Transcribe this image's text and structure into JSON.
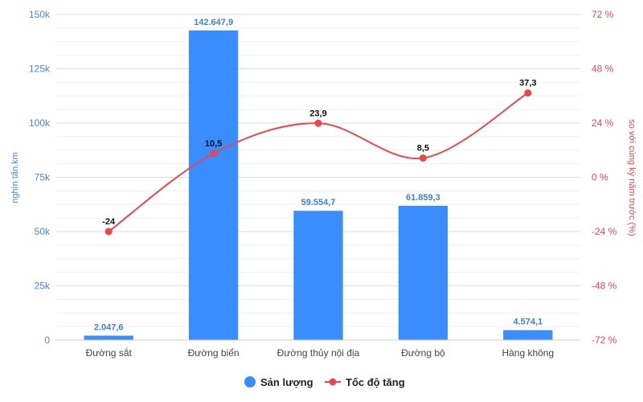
{
  "chart_data": {
    "type": "bar",
    "categories": [
      "Đường sắt",
      "Đường biển",
      "Đường thủy nội địa",
      "Đường bộ",
      "Hàng không"
    ],
    "series": [
      {
        "name": "Sản lượng",
        "type": "bar",
        "axis": "left",
        "color": "#3a8dff",
        "values": [
          2047.6,
          142647.9,
          59554.7,
          61859.3,
          4574.1
        ],
        "labels": [
          "2.047,6",
          "142.647,9",
          "59.554,7",
          "61.859,3",
          "4.574,1"
        ]
      },
      {
        "name": "Tốc độ tăng",
        "type": "line",
        "axis": "right",
        "color": "#e8474c",
        "values": [
          -24,
          10.5,
          23.9,
          8.5,
          37.3
        ],
        "labels": [
          "-24",
          "10,5",
          "23,9",
          "8,5",
          "37,3"
        ]
      }
    ],
    "y_left": {
      "label": "nghìn tấn.km",
      "ylim": [
        0,
        150000
      ],
      "ticks": [
        0,
        25000,
        50000,
        75000,
        100000,
        125000,
        150000
      ],
      "tick_labels": [
        "0",
        "25k",
        "50k",
        "75k",
        "100k",
        "125k",
        "150k"
      ]
    },
    "y_right": {
      "label": "so với cùng kỳ năm trước (%)",
      "ylim": [
        -72,
        72
      ],
      "ticks": [
        -72,
        -48,
        -24,
        0,
        24,
        48,
        72
      ],
      "tick_labels": [
        "-72 %",
        "-48 %",
        "-24 %",
        "0 %",
        "24 %",
        "48 %",
        "72 %"
      ]
    },
    "grid": true,
    "legend": "bottom"
  }
}
